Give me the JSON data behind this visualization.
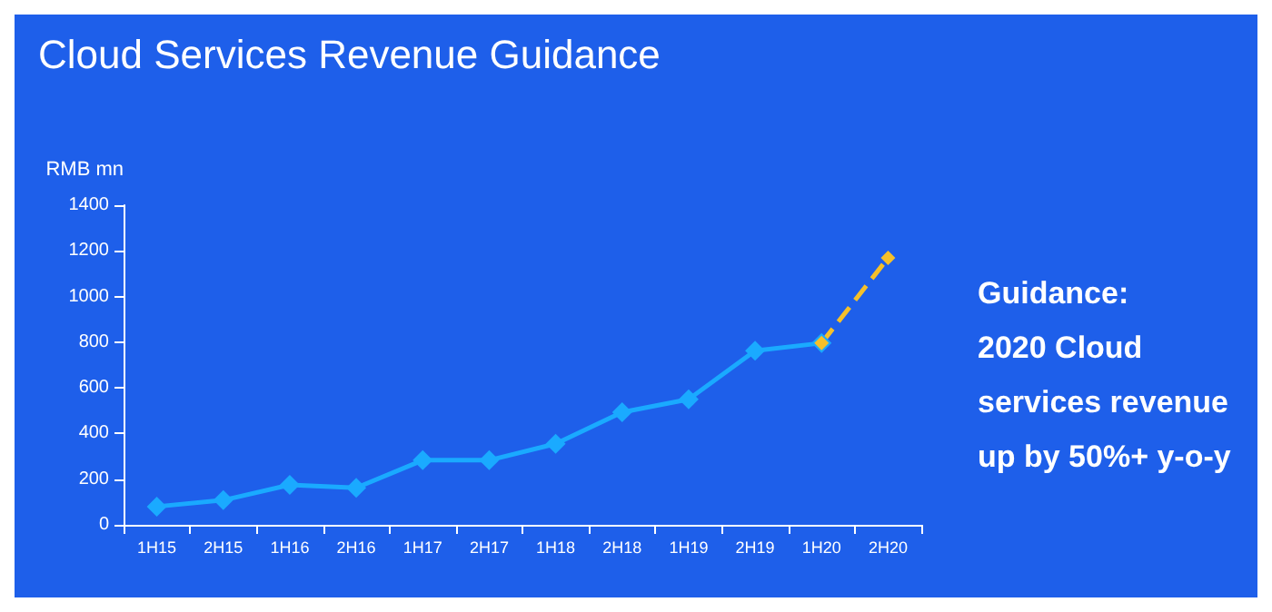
{
  "chart_data": {
    "type": "line",
    "title": "Cloud Services Revenue Guidance",
    "ylabel": "RMB mn",
    "categories": [
      "1H15",
      "2H15",
      "1H16",
      "2H16",
      "1H17",
      "2H17",
      "1H18",
      "2H18",
      "1H19",
      "2H19",
      "1H20",
      "2H20"
    ],
    "series": [
      {
        "color": "#1aaaff",
        "values": [
          80,
          108,
          175,
          162,
          283,
          283,
          355,
          493,
          550,
          763,
          796,
          null
        ]
      },
      {
        "color": "#f5c02a",
        "line_style": "dashed",
        "values": [
          null,
          null,
          null,
          null,
          null,
          null,
          null,
          null,
          null,
          null,
          796,
          1169
        ]
      }
    ],
    "ylim": [
      0,
      1400
    ],
    "yticks": [
      0,
      200,
      400,
      600,
      800,
      1000,
      1200,
      1400
    ],
    "grid": false,
    "marker": "diamond",
    "annotations": [
      "Guidance:",
      "2020 Cloud",
      "services revenue",
      "up by 50%+ y-o-y"
    ]
  }
}
